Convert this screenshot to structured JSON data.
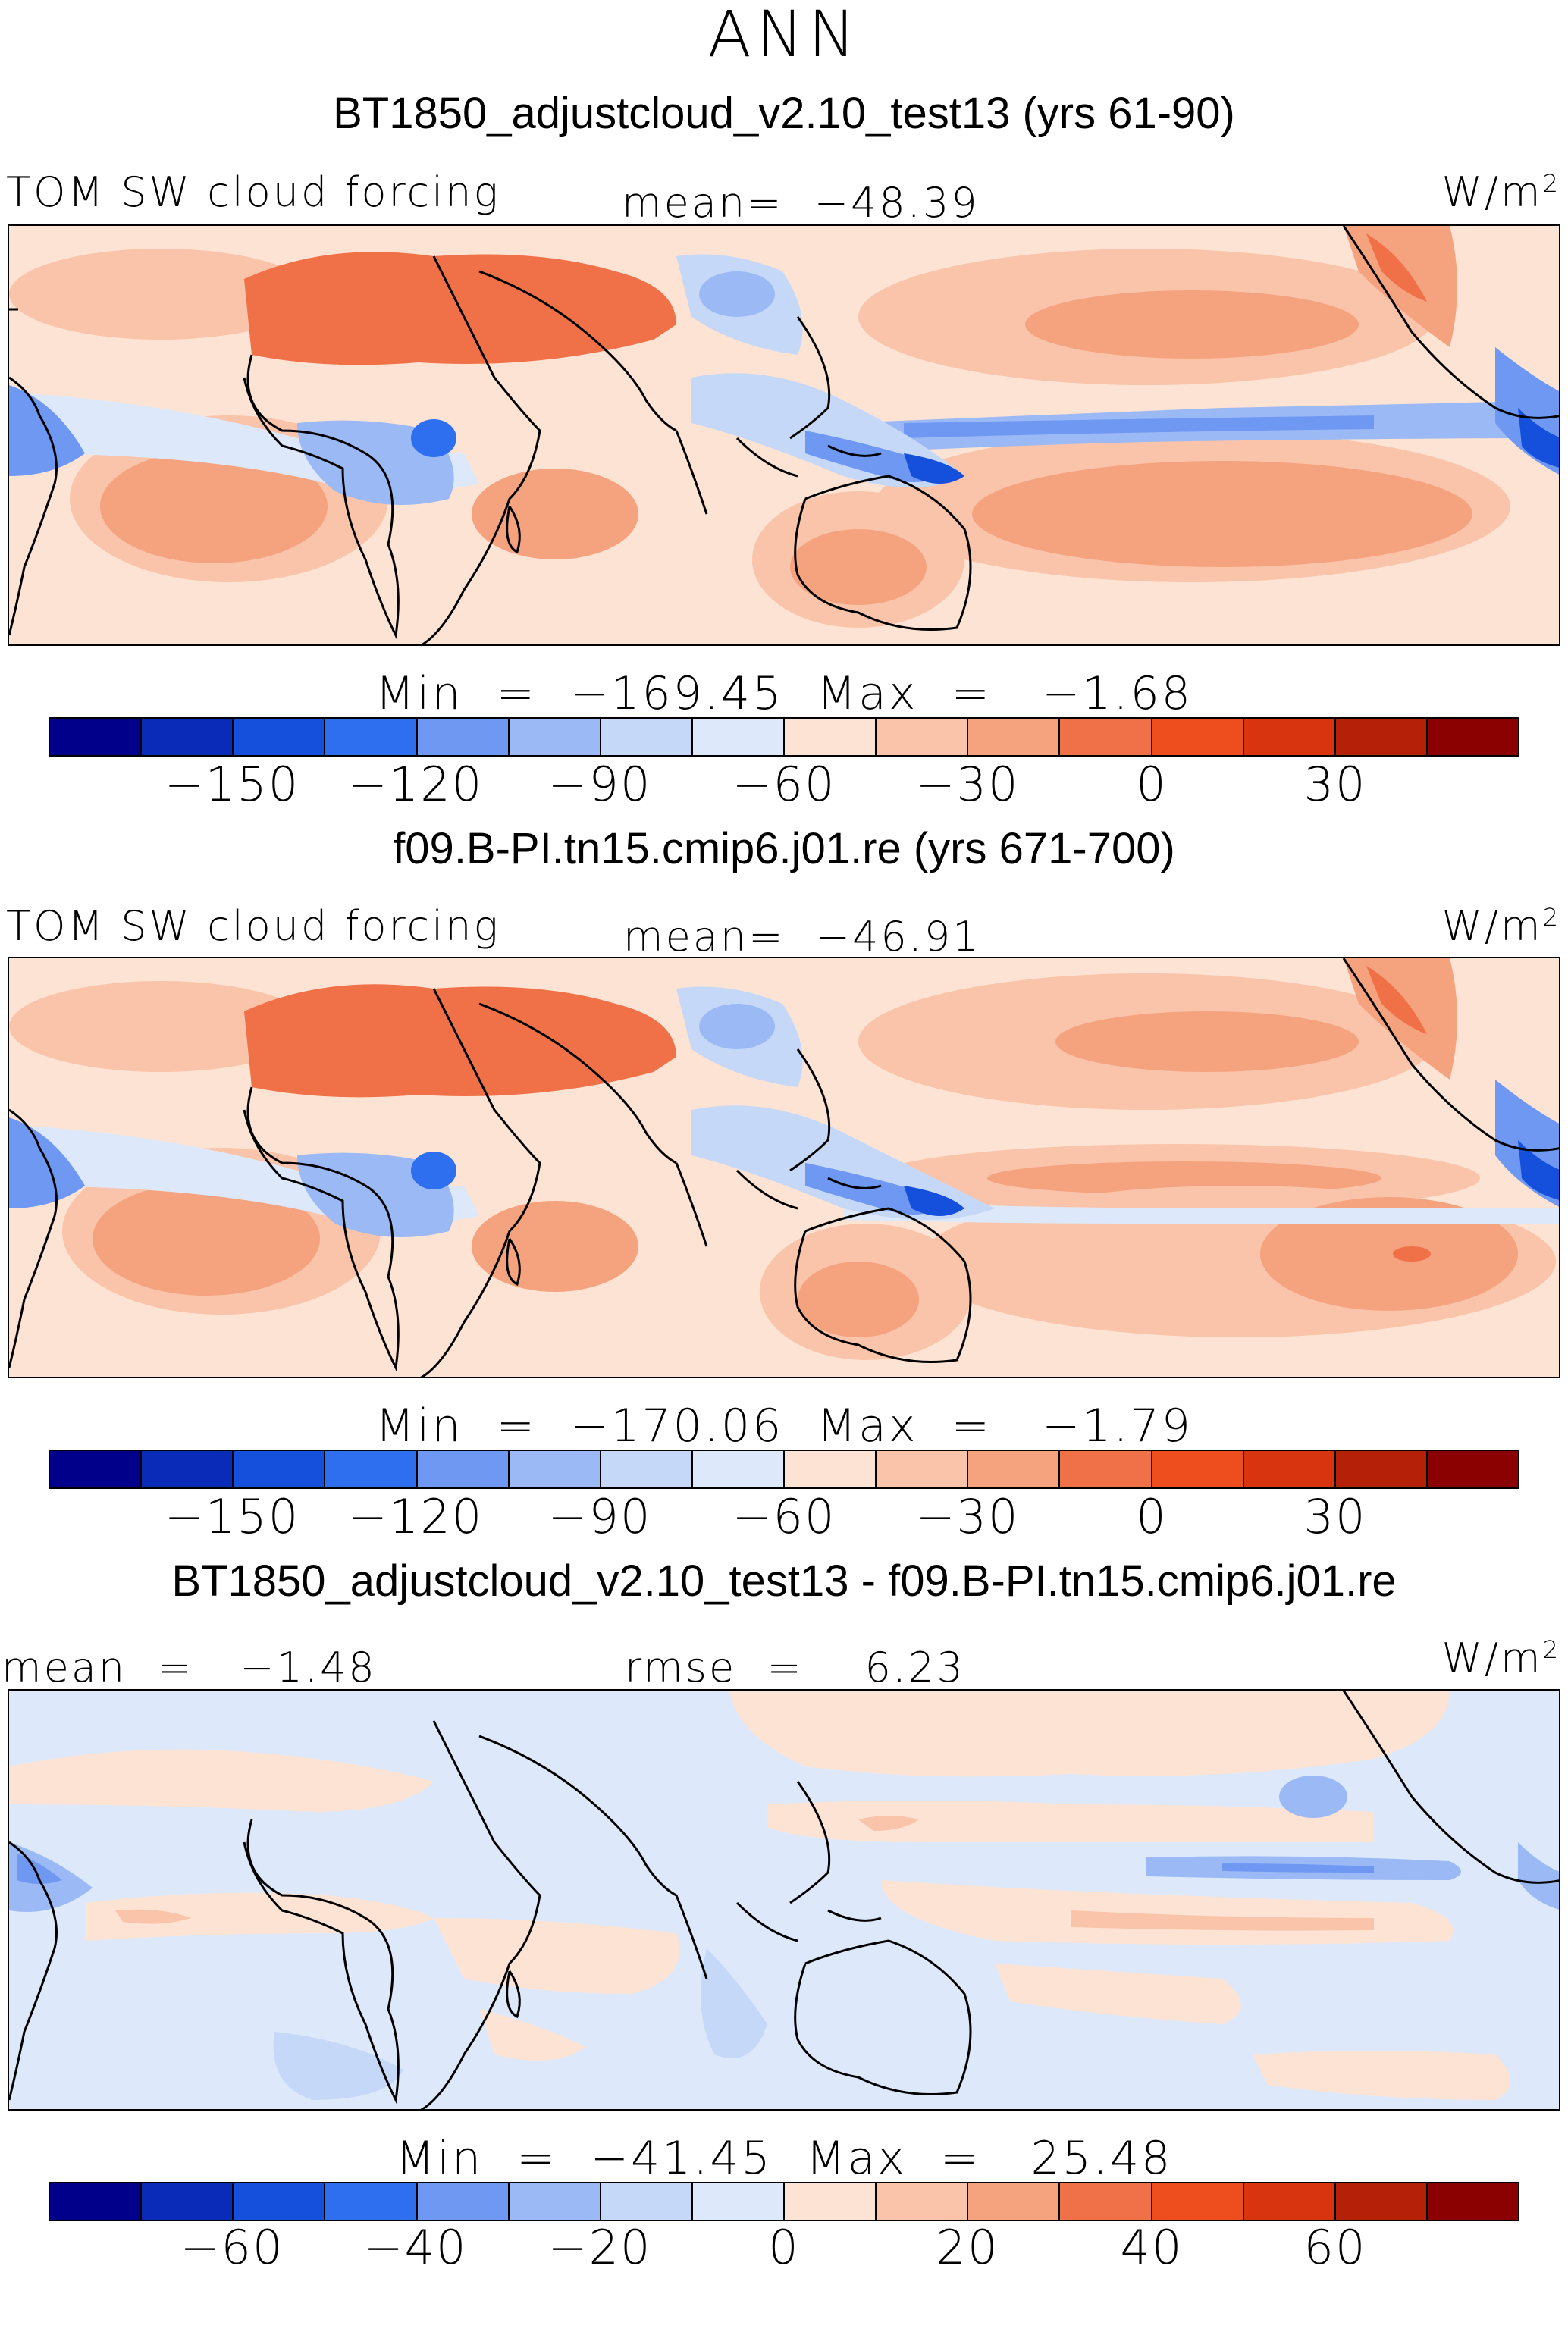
{
  "figure": {
    "season": "ANN",
    "units": "W/m",
    "units_exp": "2"
  },
  "colorbar_colors": [
    "#00008b",
    "#0a2ab8",
    "#1450dc",
    "#2e6ff0",
    "#6f98f2",
    "#9bb9f5",
    "#c5d8f8",
    "#dde9fb",
    "#fde3d3",
    "#f9c4aa",
    "#f5a27f",
    "#f07048",
    "#ee4e1e",
    "#d83410",
    "#b42008",
    "#8b0000"
  ],
  "chart_data": [
    {
      "type": "heatmap",
      "title": "BT1850_adjustcloud_v2.10_test13 (yrs 61-90)",
      "left_label": "TOM SW cloud forcing",
      "center_label": "mean=  −48.39",
      "minmax_label": "Min  =  −169.45  Max  =   −1.68",
      "mean": -48.39,
      "min": -169.45,
      "max": -1.68,
      "colorbar_ticks": [
        "−150",
        "−120",
        "−90",
        "−60",
        "−30",
        "0",
        "30"
      ],
      "colorbar_tick_values": [
        -150,
        -120,
        -90,
        -60,
        -30,
        0,
        30
      ]
    },
    {
      "type": "heatmap",
      "title": "f09.B-PI.tn15.cmip6.j01.re (yrs 671-700)",
      "left_label": "TOM SW cloud forcing",
      "center_label": "mean=  −46.91",
      "minmax_label": "Min  =  −170.06  Max  =   −1.79",
      "mean": -46.91,
      "min": -170.06,
      "max": -1.79,
      "colorbar_ticks": [
        "−150",
        "−120",
        "−90",
        "−60",
        "−30",
        "0",
        "30"
      ],
      "colorbar_tick_values": [
        -150,
        -120,
        -90,
        -60,
        -30,
        0,
        30
      ]
    },
    {
      "type": "heatmap",
      "title": "BT1850_adjustcloud_v2.10_test13 - f09.B-PI.tn15.cmip6.j01.re",
      "left_label": "mean  =   −1.48",
      "center_label": "rmse  =    6.23",
      "minmax_label": "Min  =  −41.45  Max  =   25.48",
      "mean": -1.48,
      "rmse": 6.23,
      "min": -41.45,
      "max": 25.48,
      "colorbar_ticks": [
        "−60",
        "−40",
        "−20",
        "0",
        "20",
        "40",
        "60"
      ],
      "colorbar_tick_values": [
        -60,
        -40,
        -20,
        0,
        20,
        40,
        60
      ]
    }
  ]
}
